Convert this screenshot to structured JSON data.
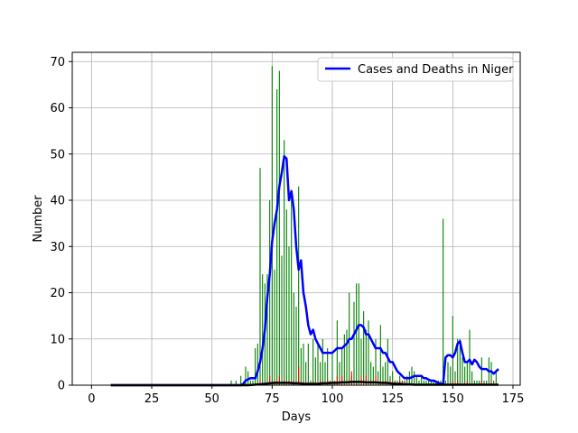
{
  "chart_data": {
    "type": "bar",
    "title": "",
    "xlabel": "Days",
    "ylabel": "Number",
    "xlim": [
      -8,
      178
    ],
    "ylim": [
      0,
      72
    ],
    "xticks": [
      0,
      25,
      50,
      75,
      100,
      125,
      150,
      175
    ],
    "yticks": [
      0,
      10,
      20,
      30,
      40,
      50,
      60,
      70
    ],
    "grid": true,
    "legend": {
      "placement": "top-right",
      "entries": [
        "Cases and Deaths in Niger"
      ]
    },
    "colors": {
      "cases_bars": "#008000",
      "deaths_bars": "#ff0000",
      "avg_line": "#0000ff",
      "deaths_line": "#000000",
      "grid": "#b0b0b0"
    },
    "series": [
      {
        "kind": "bars",
        "color": "#008000",
        "x": [
          58,
          60,
          62,
          64,
          65,
          66,
          67,
          68,
          69,
          70,
          71,
          72,
          73,
          74,
          75,
          76,
          77,
          78,
          79,
          80,
          81,
          82,
          83,
          84,
          85,
          86,
          87,
          88,
          89,
          90,
          91,
          92,
          93,
          94,
          95,
          96,
          97,
          98,
          99,
          100,
          101,
          102,
          103,
          104,
          105,
          106,
          107,
          108,
          109,
          110,
          111,
          112,
          113,
          114,
          115,
          116,
          117,
          118,
          119,
          120,
          121,
          122,
          123,
          124,
          125,
          126,
          127,
          128,
          129,
          130,
          131,
          132,
          133,
          134,
          135,
          136,
          137,
          138,
          139,
          140,
          141,
          142,
          143,
          144,
          145,
          146,
          147,
          148,
          149,
          150,
          151,
          152,
          153,
          154,
          155,
          156,
          157,
          158,
          159,
          160,
          161,
          162,
          163,
          164,
          165,
          166,
          167,
          168
        ],
        "values": [
          1,
          1,
          2,
          4,
          3,
          1,
          1,
          8,
          9,
          47,
          24,
          22,
          24,
          40,
          69,
          25,
          64,
          68,
          28,
          53,
          38,
          30,
          42,
          20,
          17,
          43,
          8,
          9,
          5,
          9,
          1,
          10,
          6,
          9,
          5,
          10,
          5,
          8,
          1,
          7,
          1,
          14,
          5,
          8,
          11,
          12,
          20,
          2,
          18,
          22,
          22,
          10,
          16,
          12,
          14,
          5,
          4,
          10,
          3,
          13,
          4,
          5,
          10,
          2,
          3,
          1,
          1,
          2,
          1,
          1,
          2,
          3,
          4,
          3,
          2,
          1,
          2,
          1,
          1,
          1,
          1,
          1,
          1,
          1,
          1,
          36,
          1,
          5,
          4,
          15,
          3,
          10,
          10,
          6,
          4,
          5,
          12,
          3,
          1,
          1,
          1,
          6,
          1,
          1,
          6,
          5,
          1,
          3
        ]
      },
      {
        "kind": "bars",
        "color": "#ff0000",
        "x": [
          70,
          74,
          76,
          78,
          80,
          82,
          84,
          86,
          88,
          92,
          95,
          98,
          100,
          102,
          104,
          106,
          108,
          110,
          112,
          114,
          116,
          118,
          120,
          122,
          124,
          126,
          128,
          130,
          146,
          150,
          152,
          156,
          162,
          166
        ],
        "values": [
          1,
          2,
          1,
          2,
          1,
          1,
          1,
          4,
          1,
          1,
          1,
          1,
          1,
          2,
          2,
          1,
          3,
          1,
          2,
          2,
          1,
          2,
          1,
          1,
          1,
          1,
          1,
          1,
          1,
          1,
          1,
          1,
          1,
          1
        ]
      },
      {
        "kind": "line",
        "color": "#0000ff",
        "x": [
          8,
          60,
          62,
          63,
          64,
          66,
          68,
          69,
          70,
          71,
          72,
          73,
          74,
          75,
          76,
          77,
          78,
          79,
          80,
          81,
          82,
          83,
          84,
          85,
          86,
          87,
          88,
          89,
          90,
          91,
          92,
          93,
          94,
          95,
          96,
          97,
          98,
          99,
          100,
          101,
          102,
          103,
          104,
          105,
          106,
          107,
          108,
          109,
          110,
          111,
          112,
          113,
          114,
          115,
          116,
          117,
          118,
          119,
          120,
          121,
          122,
          123,
          124,
          125,
          126,
          127,
          128,
          129,
          130,
          131,
          132,
          133,
          134,
          135,
          136,
          137,
          138,
          139,
          140,
          141,
          142,
          143,
          144,
          145,
          146,
          147,
          148,
          149,
          150,
          151,
          152,
          153,
          154,
          155,
          156,
          157,
          158,
          159,
          160,
          161,
          162,
          163,
          164,
          165,
          166,
          167,
          168,
          169
        ],
        "values": [
          0,
          0,
          0,
          0.3,
          1,
          1.5,
          1.5,
          3,
          5,
          8,
          12,
          19,
          24,
          31,
          35,
          38,
          43,
          46,
          49.5,
          49,
          40,
          42,
          38,
          30,
          25,
          27,
          20,
          17,
          13,
          11,
          12,
          10,
          9,
          8,
          7,
          7,
          7,
          7,
          7,
          7.5,
          8,
          8,
          8,
          8.5,
          9,
          10,
          10,
          11,
          12,
          13,
          13,
          12.5,
          11,
          11,
          10,
          9,
          8,
          8,
          8,
          7,
          7,
          6,
          5,
          5,
          4,
          3,
          2.5,
          2,
          1.5,
          1.5,
          1.5,
          1.7,
          2,
          2,
          2,
          2,
          1.5,
          1.5,
          1.2,
          1,
          1,
          0.8,
          0.5,
          0.3,
          0.3,
          6,
          6.5,
          6.5,
          6,
          7,
          9,
          9.5,
          7,
          5,
          5,
          5.5,
          4.5,
          5.5,
          5,
          4,
          3.5,
          3.5,
          3.5,
          3,
          3,
          2.5,
          3,
          3.5
        ]
      },
      {
        "kind": "line",
        "color": "#000000",
        "x": [
          8,
          60,
          65,
          70,
          72,
          74,
          76,
          78,
          80,
          82,
          84,
          86,
          88,
          90,
          92,
          94,
          96,
          98,
          100,
          102,
          104,
          106,
          108,
          110,
          112,
          114,
          116,
          118,
          120,
          122,
          124,
          126,
          128,
          130,
          132,
          134,
          136,
          138,
          140,
          145,
          150,
          155,
          160,
          165,
          169
        ],
        "values": [
          0,
          0,
          0,
          0.2,
          0.3,
          0.4,
          0.5,
          0.5,
          0.5,
          0.5,
          0.4,
          0.4,
          0.3,
          0.3,
          0.3,
          0.3,
          0.4,
          0.4,
          0.5,
          0.5,
          0.6,
          0.6,
          0.7,
          0.7,
          0.7,
          0.6,
          0.6,
          0.6,
          0.5,
          0.5,
          0.4,
          0.3,
          0.3,
          0.2,
          0.2,
          0.1,
          0.1,
          0.1,
          0.1,
          0.1,
          0.1,
          0.1,
          0.1,
          0.1,
          0.1
        ]
      }
    ]
  }
}
